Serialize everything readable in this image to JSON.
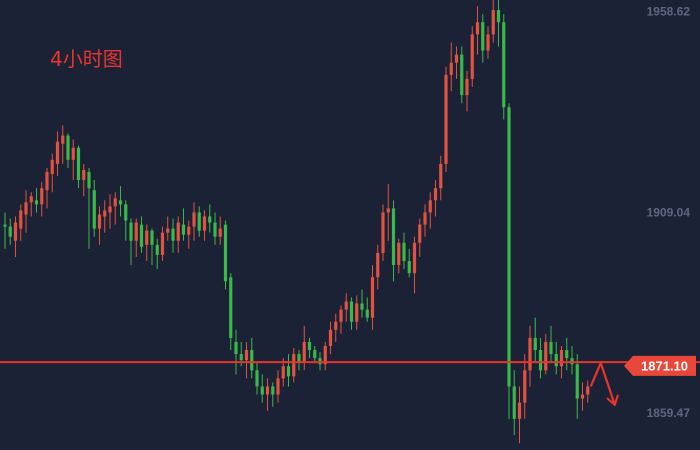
{
  "chart_label": "4小时图",
  "colors": {
    "background": "#1c2236",
    "up": "#e15241",
    "down": "#3bb84a",
    "level_line": "#e8352c",
    "price_tag": "#e8473a",
    "axis_text": "#5f6680"
  },
  "chart_data": {
    "type": "candlestick",
    "title": "4小时图",
    "xlabel": "",
    "ylabel": "",
    "y_ticks": [
      "1958.62",
      "1909.04",
      "1859.47"
    ],
    "ylim": [
      1850.3,
      1961.5
    ],
    "grid": false,
    "horizontal_line": {
      "value": 1872.0
    },
    "current_price": {
      "label": "1871.10",
      "value": 1871.1
    },
    "projection_arrow": {
      "from": 1866.0,
      "peak": 1871.8,
      "to": 1861.5
    },
    "candles": [
      [
        1906.0,
        1909.0,
        1900.0,
        1905.5
      ],
      [
        1905.5,
        1907.5,
        1901.0,
        1903.0
      ],
      [
        1902.0,
        1908.0,
        1898.0,
        1906.5
      ],
      [
        1905.0,
        1911.0,
        1902.0,
        1909.5
      ],
      [
        1908.5,
        1914.5,
        1904.0,
        1911.5
      ],
      [
        1911.5,
        1914.0,
        1908.0,
        1913.0
      ],
      [
        1912.0,
        1915.0,
        1909.0,
        1911.0
      ],
      [
        1911.0,
        1916.5,
        1908.0,
        1915.0
      ],
      [
        1914.5,
        1920.0,
        1910.0,
        1919.0
      ],
      [
        1918.5,
        1923.5,
        1914.0,
        1922.0
      ],
      [
        1921.0,
        1929.0,
        1918.0,
        1926.5
      ],
      [
        1926.0,
        1930.5,
        1921.0,
        1928.0
      ],
      [
        1928.0,
        1928.5,
        1920.0,
        1922.0
      ],
      [
        1922.0,
        1927.0,
        1917.0,
        1925.0
      ],
      [
        1925.0,
        1925.5,
        1915.0,
        1917.0
      ],
      [
        1917.0,
        1921.0,
        1913.0,
        1919.5
      ],
      [
        1919.0,
        1920.0,
        1900.0,
        1915.0
      ],
      [
        1914.5,
        1917.0,
        1903.0,
        1905.0
      ],
      [
        1905.0,
        1910.5,
        1901.0,
        1908.5
      ],
      [
        1908.0,
        1912.0,
        1904.0,
        1909.5
      ],
      [
        1909.0,
        1913.5,
        1905.0,
        1910.5
      ],
      [
        1910.5,
        1914.0,
        1906.0,
        1912.5
      ],
      [
        1912.0,
        1915.5,
        1908.0,
        1911.0
      ],
      [
        1911.0,
        1912.0,
        1902.0,
        1907.0
      ],
      [
        1906.5,
        1907.5,
        1896.0,
        1902.0
      ],
      [
        1902.0,
        1907.5,
        1898.0,
        1906.5
      ],
      [
        1906.0,
        1908.0,
        1899.0,
        1900.5
      ],
      [
        1901.0,
        1906.0,
        1897.0,
        1904.5
      ],
      [
        1904.5,
        1905.0,
        1896.0,
        1901.0
      ],
      [
        1901.0,
        1902.5,
        1895.0,
        1898.5
      ],
      [
        1898.5,
        1905.5,
        1897.0,
        1904.0
      ],
      [
        1904.0,
        1908.0,
        1902.0,
        1905.0
      ],
      [
        1905.0,
        1907.5,
        1899.0,
        1902.0
      ],
      [
        1902.0,
        1908.0,
        1899.0,
        1906.5
      ],
      [
        1906.0,
        1910.0,
        1902.0,
        1903.5
      ],
      [
        1903.5,
        1907.0,
        1900.0,
        1905.5
      ],
      [
        1905.5,
        1911.5,
        1902.0,
        1909.0
      ],
      [
        1909.0,
        1910.5,
        1903.0,
        1904.5
      ],
      [
        1904.5,
        1909.5,
        1902.0,
        1908.0
      ],
      [
        1908.0,
        1911.0,
        1904.0,
        1906.5
      ],
      [
        1906.5,
        1909.0,
        1901.0,
        1903.0
      ],
      [
        1903.0,
        1908.0,
        1901.0,
        1905.0
      ],
      [
        1906.0,
        1907.0,
        1890.0,
        1892.0
      ],
      [
        1893.0,
        1894.0,
        1875.0,
        1878.0
      ],
      [
        1877.0,
        1880.0,
        1869.0,
        1874.0
      ],
      [
        1874.0,
        1877.0,
        1871.0,
        1872.5
      ],
      [
        1872.5,
        1877.0,
        1868.0,
        1875.0
      ],
      [
        1875.0,
        1878.0,
        1868.0,
        1870.0
      ],
      [
        1870.0,
        1872.0,
        1864.0,
        1866.0
      ],
      [
        1866.0,
        1869.0,
        1862.0,
        1864.0
      ],
      [
        1864.0,
        1868.0,
        1860.0,
        1866.0
      ],
      [
        1866.0,
        1867.0,
        1861.0,
        1864.0
      ],
      [
        1864.0,
        1870.0,
        1862.0,
        1868.0
      ],
      [
        1868.0,
        1873.0,
        1866.0,
        1871.0
      ],
      [
        1871.0,
        1874.0,
        1866.0,
        1868.5
      ],
      [
        1868.5,
        1875.5,
        1867.0,
        1874.0
      ],
      [
        1874.0,
        1875.0,
        1870.0,
        1872.0
      ],
      [
        1872.0,
        1881.0,
        1870.0,
        1877.0
      ],
      [
        1877.0,
        1878.0,
        1873.0,
        1875.0
      ],
      [
        1875.0,
        1876.0,
        1872.0,
        1873.0
      ],
      [
        1873.0,
        1874.5,
        1870.0,
        1871.5
      ],
      [
        1871.5,
        1877.0,
        1870.0,
        1876.0
      ],
      [
        1876.0,
        1882.0,
        1874.0,
        1880.0
      ],
      [
        1880.0,
        1884.0,
        1877.0,
        1882.0
      ],
      [
        1882.0,
        1886.0,
        1879.0,
        1885.0
      ],
      [
        1885.0,
        1889.0,
        1882.0,
        1887.0
      ],
      [
        1887.0,
        1888.0,
        1880.0,
        1882.0
      ],
      [
        1882.0,
        1888.5,
        1880.0,
        1886.5
      ],
      [
        1886.5,
        1890.0,
        1883.0,
        1885.0
      ],
      [
        1885.0,
        1888.0,
        1882.0,
        1883.0
      ],
      [
        1883.0,
        1896.0,
        1880.0,
        1893.0
      ],
      [
        1893.0,
        1901.0,
        1890.0,
        1899.0
      ],
      [
        1899.0,
        1911.0,
        1897.0,
        1909.0
      ],
      [
        1909.0,
        1916.0,
        1902.0,
        1910.0
      ],
      [
        1910.0,
        1912.0,
        1892.0,
        1896.0
      ],
      [
        1896.0,
        1902.5,
        1894.0,
        1901.5
      ],
      [
        1901.5,
        1904.0,
        1895.0,
        1897.0
      ],
      [
        1897.0,
        1900.0,
        1893.0,
        1894.0
      ],
      [
        1894.0,
        1903.0,
        1889.0,
        1901.5
      ],
      [
        1901.5,
        1907.5,
        1898.0,
        1906.0
      ],
      [
        1906.0,
        1911.0,
        1903.0,
        1909.0
      ],
      [
        1909.0,
        1914.0,
        1905.0,
        1912.0
      ],
      [
        1912.0,
        1917.0,
        1908.0,
        1915.0
      ],
      [
        1915.0,
        1923.0,
        1912.0,
        1921.0
      ],
      [
        1921.0,
        1945.0,
        1919.0,
        1943.0
      ],
      [
        1943.0,
        1951.0,
        1939.0,
        1946.0
      ],
      [
        1946.0,
        1950.0,
        1942.0,
        1948.0
      ],
      [
        1948.0,
        1950.0,
        1936.0,
        1938.0
      ],
      [
        1938.0,
        1944.0,
        1934.0,
        1942.0
      ],
      [
        1942.0,
        1955.0,
        1940.0,
        1953.0
      ],
      [
        1953.0,
        1960.0,
        1948.0,
        1956.0
      ],
      [
        1956.0,
        1958.0,
        1946.0,
        1949.0
      ],
      [
        1949.0,
        1955.0,
        1947.0,
        1953.0
      ],
      [
        1953.0,
        1962.0,
        1951.0,
        1959.0
      ],
      [
        1959.0,
        1961.5,
        1950.0,
        1956.0
      ],
      [
        1956.0,
        1958.0,
        1932.0,
        1935.0
      ],
      [
        1935.0,
        1936.0,
        1858.0,
        1866.0
      ],
      [
        1866.0,
        1870.0,
        1854.0,
        1858.0
      ],
      [
        1858.0,
        1866.0,
        1852.0,
        1862.0
      ],
      [
        1862.0,
        1874.0,
        1858.0,
        1870.0
      ],
      [
        1870.0,
        1881.0,
        1866.0,
        1878.0
      ],
      [
        1878.0,
        1883.0,
        1872.0,
        1875.0
      ],
      [
        1875.0,
        1878.0,
        1868.0,
        1870.0
      ],
      [
        1870.0,
        1879.0,
        1869.0,
        1877.0
      ],
      [
        1877.0,
        1881.0,
        1872.0,
        1874.0
      ],
      [
        1874.0,
        1877.0,
        1869.0,
        1871.0
      ],
      [
        1871.0,
        1876.0,
        1868.0,
        1875.0
      ],
      [
        1875.0,
        1878.0,
        1870.0,
        1873.0
      ],
      [
        1873.0,
        1876.0,
        1869.0,
        1871.5
      ],
      [
        1871.5,
        1874.0,
        1858.0,
        1863.0
      ],
      [
        1863.0,
        1867.0,
        1860.0,
        1864.0
      ],
      [
        1864.0,
        1867.5,
        1862.0,
        1866.0
      ]
    ]
  }
}
